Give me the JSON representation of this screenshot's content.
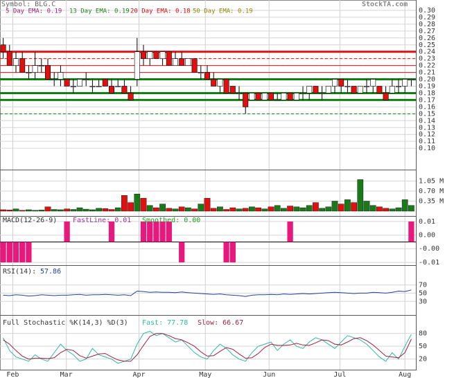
{
  "chart_data": [
    {
      "type": "candlestick",
      "title": "Symbol: BLG.C",
      "source": "StockTA.com",
      "annotations": [
        "5 Day EMA: 0.19",
        "13 Day EMA: 0.19",
        "20 Day EMA: 0.18",
        "50 Day EMA: 0.19"
      ],
      "open": [
        0.25,
        0.24,
        0.22,
        0.23,
        0.21,
        0.21,
        0.22,
        0.22,
        0.2,
        0.2,
        0.2,
        0.19,
        0.19,
        0.2,
        0.19,
        0.19,
        0.2,
        0.19,
        0.19,
        0.19,
        0.18,
        0.2,
        0.24,
        0.23,
        0.24,
        0.23,
        0.24,
        0.22,
        0.23,
        0.22,
        0.23,
        0.21,
        0.21,
        0.2,
        0.19,
        0.2,
        0.19,
        0.18,
        0.18,
        0.17,
        0.18,
        0.17,
        0.18,
        0.17,
        0.17,
        0.18,
        0.17,
        0.18,
        0.18,
        0.19,
        0.18,
        0.18,
        0.19,
        0.2,
        0.19,
        0.19,
        0.18,
        0.19,
        0.19,
        0.19,
        0.18,
        0.18,
        0.19,
        0.19,
        0.2
      ],
      "high": [
        0.26,
        0.25,
        0.24,
        0.24,
        0.22,
        0.24,
        0.23,
        0.23,
        0.21,
        0.22,
        0.2,
        0.2,
        0.2,
        0.21,
        0.2,
        0.2,
        0.2,
        0.2,
        0.2,
        0.2,
        0.19,
        0.26,
        0.25,
        0.24,
        0.24,
        0.24,
        0.24,
        0.24,
        0.24,
        0.23,
        0.23,
        0.22,
        0.22,
        0.21,
        0.2,
        0.2,
        0.19,
        0.19,
        0.18,
        0.18,
        0.18,
        0.18,
        0.18,
        0.18,
        0.18,
        0.18,
        0.18,
        0.19,
        0.19,
        0.19,
        0.19,
        0.19,
        0.2,
        0.2,
        0.2,
        0.19,
        0.19,
        0.2,
        0.2,
        0.19,
        0.19,
        0.2,
        0.2,
        0.2,
        0.2
      ],
      "low": [
        0.23,
        0.22,
        0.21,
        0.21,
        0.2,
        0.2,
        0.21,
        0.2,
        0.19,
        0.19,
        0.19,
        0.18,
        0.19,
        0.19,
        0.18,
        0.19,
        0.19,
        0.18,
        0.19,
        0.18,
        0.17,
        0.19,
        0.22,
        0.22,
        0.23,
        0.22,
        0.22,
        0.22,
        0.22,
        0.22,
        0.21,
        0.2,
        0.2,
        0.19,
        0.18,
        0.18,
        0.18,
        0.17,
        0.15,
        0.17,
        0.17,
        0.17,
        0.17,
        0.17,
        0.17,
        0.17,
        0.17,
        0.17,
        0.17,
        0.18,
        0.17,
        0.18,
        0.18,
        0.18,
        0.18,
        0.18,
        0.18,
        0.18,
        0.18,
        0.18,
        0.17,
        0.18,
        0.18,
        0.18,
        0.19
      ],
      "close": [
        0.24,
        0.22,
        0.23,
        0.21,
        0.21,
        0.22,
        0.22,
        0.2,
        0.2,
        0.21,
        0.19,
        0.19,
        0.2,
        0.2,
        0.19,
        0.19,
        0.19,
        0.18,
        0.19,
        0.18,
        0.17,
        0.24,
        0.23,
        0.24,
        0.23,
        0.24,
        0.22,
        0.23,
        0.22,
        0.23,
        0.21,
        0.21,
        0.2,
        0.19,
        0.2,
        0.18,
        0.18,
        0.18,
        0.16,
        0.18,
        0.17,
        0.18,
        0.17,
        0.17,
        0.18,
        0.17,
        0.18,
        0.18,
        0.19,
        0.18,
        0.18,
        0.19,
        0.2,
        0.19,
        0.19,
        0.18,
        0.19,
        0.19,
        0.2,
        0.18,
        0.17,
        0.19,
        0.19,
        0.2,
        0.2
      ],
      "up_color": "#ffffff",
      "down_color": "#e01010",
      "levels": [
        {
          "value": 0.24,
          "color": "#e01010",
          "style": "thick"
        },
        {
          "value": 0.23,
          "color": "#e01010",
          "style": "dashed"
        },
        {
          "value": 0.22,
          "color": "#e01010",
          "style": "thin"
        },
        {
          "value": 0.21,
          "color": "#e01010",
          "style": "thin"
        },
        {
          "value": 0.2,
          "color": "#108010",
          "style": "thick"
        },
        {
          "value": 0.18,
          "color": "#108010",
          "style": "thick"
        },
        {
          "value": 0.17,
          "color": "#108010",
          "style": "thick"
        },
        {
          "value": 0.15,
          "color": "#108010",
          "style": "dashed"
        }
      ],
      "xlim": [
        0,
        65
      ],
      "xticks": [
        {
          "value": 2,
          "label": "Feb"
        },
        {
          "value": 10.4,
          "label": "Mar"
        },
        {
          "value": 21.8,
          "label": "Apr"
        },
        {
          "value": 32.2,
          "label": "May"
        },
        {
          "value": 42.2,
          "label": "Jun"
        },
        {
          "value": 53.3,
          "label": "Jul"
        },
        {
          "value": 63.5,
          "label": "Aug"
        }
      ],
      "ylim": [
        0.07,
        0.31
      ],
      "yticks": [
        {
          "value": 0.1,
          "label": "0.10"
        },
        {
          "value": 0.11,
          "label": "0.11"
        },
        {
          "value": 0.12,
          "label": "0.12"
        },
        {
          "value": 0.13,
          "label": "0.13"
        },
        {
          "value": 0.14,
          "label": "0.14"
        },
        {
          "value": 0.15,
          "label": "0.15"
        },
        {
          "value": 0.16,
          "label": "0.16"
        },
        {
          "value": 0.17,
          "label": "0.17"
        },
        {
          "value": 0.18,
          "label": "0.18"
        },
        {
          "value": 0.19,
          "label": "0.19"
        },
        {
          "value": 0.2,
          "label": "0.20"
        },
        {
          "value": 0.21,
          "label": "0.21"
        },
        {
          "value": 0.22,
          "label": "0.22"
        },
        {
          "value": 0.23,
          "label": "0.23"
        },
        {
          "value": 0.24,
          "label": "0.24"
        },
        {
          "value": 0.25,
          "label": "0.25"
        },
        {
          "value": 0.26,
          "label": "0.26"
        },
        {
          "value": 0.27,
          "label": "0.27"
        },
        {
          "value": 0.28,
          "label": "0.28"
        },
        {
          "value": 0.29,
          "label": "0.29"
        },
        {
          "value": 0.3,
          "label": "0.30"
        }
      ],
      "grid": true
    },
    {
      "type": "bar",
      "values": [
        0.05,
        0.04,
        0.08,
        0.03,
        0.05,
        0.03,
        0.04,
        0.15,
        0.06,
        0.05,
        0.08,
        0.06,
        0.12,
        0.07,
        0.05,
        0.1,
        0.09,
        0.06,
        0.12,
        0.55,
        0.3,
        0.6,
        0.45,
        0.2,
        0.12,
        0.25,
        0.1,
        0.08,
        0.15,
        0.12,
        0.08,
        0.25,
        0.45,
        0.1,
        0.15,
        0.06,
        0.12,
        0.08,
        0.1,
        0.15,
        0.12,
        0.08,
        0.15,
        0.2,
        0.1,
        0.18,
        0.15,
        0.12,
        0.2,
        0.3,
        0.1,
        0.15,
        0.35,
        0.25,
        0.4,
        0.3,
        1.1,
        0.35,
        0.2,
        0.15,
        0.1,
        0.08,
        0.12,
        0.4,
        0.2
      ],
      "up_color": "#1a7a1a",
      "down_color": "#e01010",
      "ylim": [
        0,
        1.4
      ],
      "yticks": [
        {
          "value": 0.35,
          "label": "0.35 M"
        },
        {
          "value": 0.7,
          "label": "0.70 M"
        },
        {
          "value": 1.05,
          "label": "1.05 M"
        }
      ],
      "grid": true
    },
    {
      "type": "bar",
      "title": "MACD(12-26-9)",
      "annotations": [
        "FastLine: 0.01",
        "Smoothed: 0.00"
      ],
      "values": [
        -0.01,
        -0.01,
        -0.01,
        -0.01,
        -0.01,
        0,
        0,
        0,
        0,
        0,
        0.01,
        0,
        0,
        0,
        0,
        0,
        0,
        0.01,
        0,
        0,
        0,
        0,
        0.01,
        0.01,
        0.01,
        0.01,
        0.01,
        0,
        -0.01,
        0,
        0,
        0,
        0,
        0,
        0,
        -0.01,
        -0.01,
        0,
        0,
        0,
        0,
        0,
        0,
        0,
        0,
        0.01,
        0,
        0,
        0,
        0,
        0,
        0,
        0,
        0,
        0,
        0,
        0,
        0,
        0,
        0,
        0,
        0,
        0,
        0,
        0.01
      ],
      "color": "#e8197d",
      "ylim": [
        -0.011,
        0.012
      ],
      "yticks": [
        {
          "value": -0.01,
          "label": "-0.01"
        },
        {
          "value": -0.0033,
          "label": "-0.00"
        },
        {
          "value": 0.0033,
          "label": "0.00"
        },
        {
          "value": 0.01,
          "label": "0.01"
        }
      ],
      "grid": true
    },
    {
      "type": "line",
      "title": "RSI(14):",
      "annotations": [
        "57.86"
      ],
      "series": [
        {
          "color": "#2040a0",
          "values": [
            45,
            44,
            46,
            45,
            43,
            44,
            46,
            45,
            44,
            45,
            45,
            46,
            47,
            45,
            46,
            46,
            47,
            46,
            45,
            46,
            44,
            55,
            54,
            52,
            53,
            52,
            52,
            51,
            53,
            51,
            50,
            49,
            48,
            47,
            48,
            46,
            45,
            44,
            42,
            45,
            46,
            46,
            47,
            46,
            48,
            47,
            48,
            49,
            48,
            49,
            50,
            51,
            52,
            51,
            50,
            49,
            50,
            50,
            52,
            51,
            50,
            52,
            55,
            54,
            57.86
          ]
        }
      ],
      "ylim": [
        0,
        115
      ],
      "yticks": [
        30,
        50,
        70
      ],
      "grid": true
    },
    {
      "type": "line",
      "title": "Full Stochastic %K(14,3) %D(3)",
      "series": [
        {
          "name": "Fast: 77.78",
          "color": "#30b8a0",
          "values": [
            70,
            40,
            25,
            20,
            15,
            30,
            20,
            15,
            35,
            55,
            40,
            30,
            15,
            20,
            45,
            30,
            25,
            20,
            10,
            15,
            20,
            55,
            80,
            85,
            75,
            80,
            70,
            60,
            65,
            50,
            35,
            25,
            20,
            40,
            55,
            45,
            30,
            20,
            15,
            35,
            50,
            55,
            60,
            40,
            55,
            65,
            50,
            45,
            60,
            70,
            65,
            55,
            45,
            60,
            75,
            70,
            65,
            55,
            40,
            25,
            15,
            35,
            20,
            50,
            77.78
          ]
        },
        {
          "name": "Slow: 66.67",
          "color": "#a02040",
          "values": [
            65,
            55,
            40,
            27,
            20,
            22,
            22,
            21,
            23,
            35,
            43,
            40,
            28,
            22,
            27,
            32,
            33,
            25,
            18,
            15,
            15,
            30,
            52,
            73,
            80,
            80,
            75,
            68,
            65,
            58,
            50,
            37,
            27,
            28,
            38,
            47,
            43,
            32,
            22,
            23,
            33,
            47,
            55,
            52,
            52,
            53,
            57,
            53,
            52,
            58,
            65,
            63,
            55,
            53,
            60,
            68,
            70,
            63,
            53,
            40,
            27,
            25,
            23,
            35,
            66.67
          ]
        }
      ],
      "ylim": [
        0,
        120
      ],
      "yticks": [
        20,
        50,
        80
      ],
      "grid": true
    }
  ]
}
